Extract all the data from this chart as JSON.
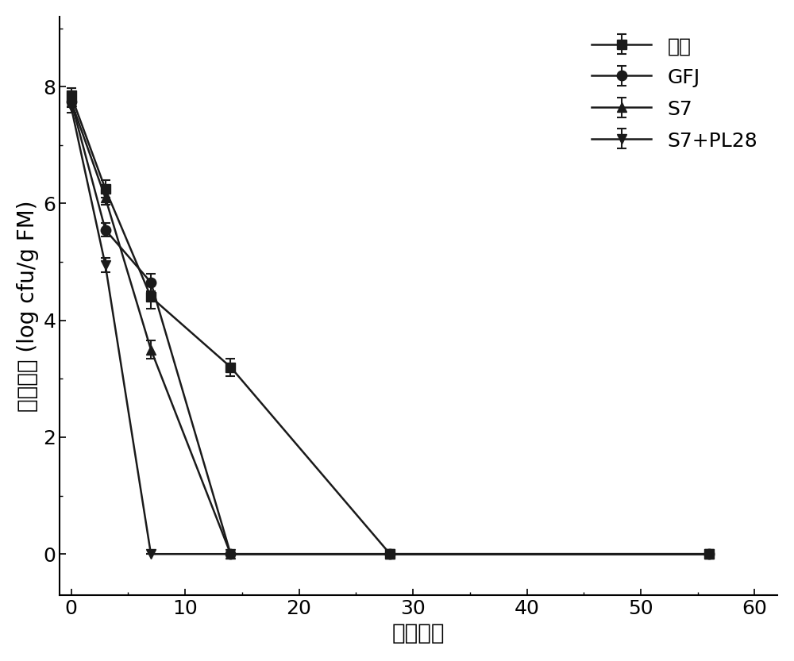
{
  "series": [
    {
      "label": "对照",
      "x": [
        0,
        3,
        7,
        14,
        28,
        56
      ],
      "y": [
        7.85,
        6.25,
        4.4,
        3.2,
        0.0,
        0.0
      ],
      "yerr": [
        0.12,
        0.15,
        0.2,
        0.15,
        0.0,
        0.0
      ],
      "marker": "s",
      "color": "#1a1a1a",
      "linestyle": "-"
    },
    {
      "label": "GFJ",
      "x": [
        0,
        3,
        7,
        14,
        28,
        56
      ],
      "y": [
        7.75,
        5.55,
        4.65,
        0.0,
        0.0,
        0.0
      ],
      "yerr": [
        0.1,
        0.12,
        0.15,
        0.0,
        0.0,
        0.0
      ],
      "marker": "o",
      "color": "#1a1a1a",
      "linestyle": "-"
    },
    {
      "label": "S7",
      "x": [
        0,
        3,
        7,
        14,
        28,
        56
      ],
      "y": [
        7.75,
        6.1,
        3.5,
        0.0,
        0.0,
        0.0
      ],
      "yerr": [
        0.1,
        0.12,
        0.15,
        0.0,
        0.0,
        0.0
      ],
      "marker": "^",
      "color": "#1a1a1a",
      "linestyle": "-"
    },
    {
      "label": "S7+PL28",
      "x": [
        0,
        3,
        7,
        14,
        28,
        56
      ],
      "y": [
        7.65,
        4.95,
        0.0,
        0.0,
        0.0,
        0.0
      ],
      "yerr": [
        0.1,
        0.12,
        0.0,
        0.0,
        0.0,
        0.0
      ],
      "marker": "v",
      "color": "#1a1a1a",
      "linestyle": "-"
    }
  ],
  "xlabel": "青贮时间",
  "ylabel": "大肠杆菌 (log cfu/g FM)",
  "xlim": [
    -1,
    62
  ],
  "ylim": [
    -0.7,
    9.2
  ],
  "xticks": [
    0,
    10,
    20,
    30,
    40,
    50,
    60
  ],
  "yticks": [
    0,
    2,
    4,
    6,
    8
  ],
  "xlabel_fontsize": 20,
  "ylabel_fontsize": 20,
  "tick_fontsize": 18,
  "legend_fontsize": 18,
  "marker_size": 9,
  "line_width": 1.8,
  "background_color": "#ffffff",
  "legend_loc": "upper right"
}
